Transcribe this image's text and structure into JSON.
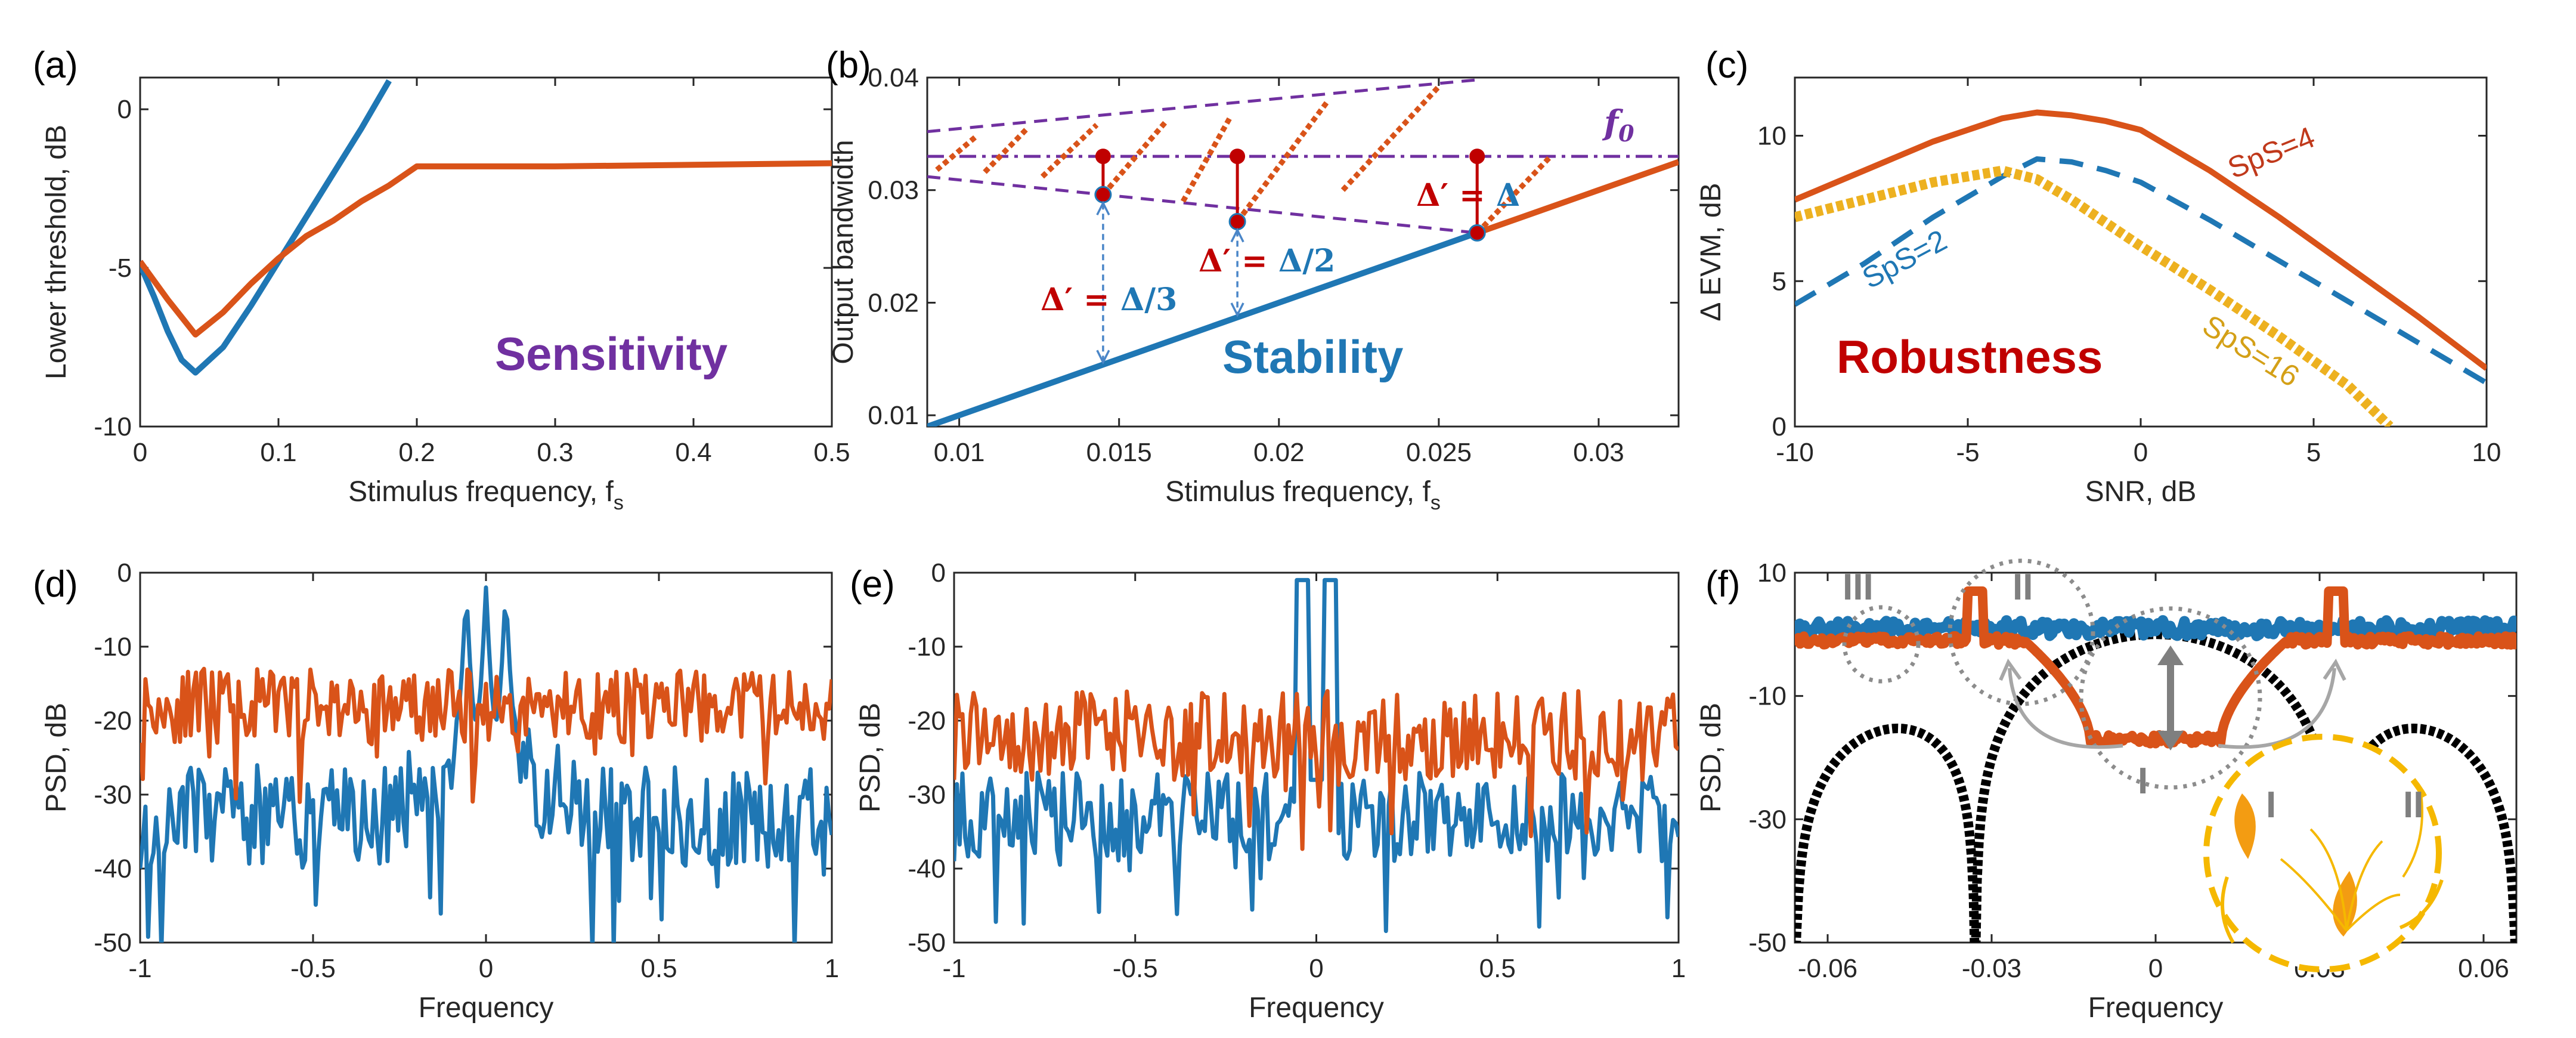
{
  "chart_data": [
    {
      "panel": "(a)",
      "type": "line",
      "xlabel": "Stimulus frequency, f",
      "xlabel_sub": "s",
      "ylabel": "Lower threshold, dB",
      "xlim": [
        0,
        0.5
      ],
      "ylim": [
        -10,
        1
      ],
      "xticks": [
        "0",
        "0.1",
        "0.2",
        "0.3",
        "0.4",
        "0.5"
      ],
      "yticks": [
        "0",
        "-5",
        "-10"
      ],
      "annotation": "Sensitivity",
      "series": [
        {
          "name": "blue",
          "color": "#1f77b4",
          "x": [
            0,
            0.01,
            0.02,
            0.03,
            0.04,
            0.06,
            0.08,
            0.1,
            0.12,
            0.14,
            0.16,
            0.18
          ],
          "y": [
            -4.9,
            -5.9,
            -7.0,
            -7.9,
            -8.3,
            -7.5,
            -6.2,
            -4.8,
            -3.4,
            -2.0,
            -0.6,
            0.9
          ]
        },
        {
          "name": "orange",
          "color": "#d95319",
          "x": [
            0,
            0.02,
            0.04,
            0.06,
            0.08,
            0.1,
            0.12,
            0.14,
            0.16,
            0.18,
            0.2,
            0.3,
            0.4,
            0.5
          ],
          "y": [
            -4.8,
            -6.0,
            -7.1,
            -6.4,
            -5.5,
            -4.7,
            -4.0,
            -3.5,
            -2.9,
            -2.4,
            -1.8,
            -1.8,
            -1.75,
            -1.7
          ]
        }
      ]
    },
    {
      "panel": "(b)",
      "type": "line",
      "xlabel": "Stimulus frequency, f",
      "xlabel_sub": "s",
      "ylabel": "Output bandwidth",
      "xlim": [
        0.009,
        0.0325
      ],
      "ylim": [
        0.009,
        0.04
      ],
      "xticks": [
        "0.01",
        "0.015",
        "0.02",
        "0.025",
        "0.03"
      ],
      "yticks": [
        "0.01",
        "0.02",
        "0.03",
        "0.04"
      ],
      "annotation": "Stability",
      "f0_label": "f",
      "f0_value": 0.033,
      "labels": {
        "d3_prefix": "Δ′ = ",
        "d3_value": "Δ/3",
        "d2_prefix": "Δ′ = ",
        "d2_value": "Δ/2",
        "d1_prefix": "Δ′ = ",
        "d1_value": "Δ"
      },
      "markers_x": [
        0.0145,
        0.0187,
        0.0262
      ],
      "series": [
        {
          "name": "stable-blue",
          "color": "#1f77b4",
          "x": [
            0.009,
            0.0262
          ],
          "y": [
            0.009,
            0.0262
          ]
        },
        {
          "name": "orange-branch",
          "color": "#d95319",
          "x": [
            0.0262,
            0.0325
          ],
          "y": [
            0.0262,
            0.0325
          ]
        }
      ]
    },
    {
      "panel": "(c)",
      "type": "line",
      "xlabel": "SNR, dB",
      "ylabel": "Δ EVM, dB",
      "xlim": [
        -10,
        10
      ],
      "ylim": [
        0,
        12
      ],
      "xticks": [
        "-10",
        "-5",
        "0",
        "5",
        "10"
      ],
      "yticks": [
        "0",
        "5",
        "10"
      ],
      "annotation": "Robustness",
      "series": [
        {
          "name": "SpS=4",
          "color": "#d95319",
          "x": [
            -10,
            -8,
            -6,
            -4,
            -3,
            -2,
            -1,
            0,
            2,
            4,
            6,
            8,
            10
          ],
          "y": [
            7.8,
            8.8,
            9.8,
            10.6,
            10.8,
            10.7,
            10.5,
            10.2,
            8.8,
            7.2,
            5.5,
            3.8,
            2.0
          ]
        },
        {
          "name": "SpS=2",
          "color": "#1f77b4",
          "x": [
            -10,
            -8,
            -6,
            -4,
            -3,
            -2,
            -1,
            0,
            2,
            4,
            6,
            8,
            10
          ],
          "y": [
            4.2,
            5.6,
            7.2,
            8.6,
            9.2,
            9.1,
            8.8,
            8.4,
            7.1,
            5.7,
            4.3,
            2.9,
            1.5
          ]
        },
        {
          "name": "SpS=16",
          "color": "#edb120",
          "x": [
            -10,
            -8,
            -6,
            -4,
            -3,
            -2,
            -1,
            0,
            2,
            4,
            6,
            7.2
          ],
          "y": [
            7.2,
            7.8,
            8.4,
            8.8,
            8.5,
            7.8,
            7.0,
            6.2,
            4.7,
            3.1,
            1.4,
            0.0
          ]
        }
      ],
      "legend_labels": [
        "SpS=4",
        "SpS=2",
        "SpS=16"
      ]
    },
    {
      "panel": "(d)",
      "type": "line",
      "xlabel": "Frequency",
      "ylabel": "PSD, dB",
      "xlim": [
        -1,
        1
      ],
      "ylim": [
        -50,
        0
      ],
      "xticks": [
        "-1",
        "-0.5",
        "0",
        "0.5",
        "1"
      ],
      "yticks": [
        "0",
        "-10",
        "-20",
        "-30",
        "-40",
        "-50"
      ],
      "series": [
        {
          "name": "blue-psd",
          "color": "#1f77b4",
          "base": -33,
          "spread": 7,
          "seed": 3
        },
        {
          "name": "orange-psd",
          "color": "#d95319",
          "base": -18,
          "spread": 5,
          "seed": 11
        }
      ]
    },
    {
      "panel": "(e)",
      "type": "line",
      "xlabel": "Frequency",
      "ylabel": "PSD, dB",
      "xlim": [
        -1,
        1
      ],
      "ylim": [
        -50,
        0
      ],
      "xticks": [
        "-1",
        "-0.5",
        "0",
        "0.5",
        "1"
      ],
      "yticks": [
        "0",
        "-10",
        "-20",
        "-30",
        "-40",
        "-50"
      ],
      "series": [
        {
          "name": "blue-psd",
          "color": "#1f77b4",
          "base": -33,
          "spread": 6,
          "seed": 21
        },
        {
          "name": "orange-psd",
          "color": "#d95319",
          "base": -22,
          "spread": 6,
          "seed": 37
        }
      ]
    },
    {
      "panel": "(f)",
      "type": "line",
      "xlabel": "Frequency",
      "ylabel": "PSD, dB",
      "xlim": [
        -0.066,
        0.066
      ],
      "ylim": [
        -50,
        10
      ],
      "xticks": [
        "-0.06",
        "-0.03",
        "0",
        "0.03",
        "0.06"
      ],
      "yticks": [
        "10",
        "-10",
        "-30",
        "-50"
      ],
      "region_labels": [
        "III",
        "II",
        "I",
        "I",
        "II"
      ],
      "series": [
        {
          "name": "blue-flat",
          "color": "#1f77b4",
          "level": 1
        },
        {
          "name": "orange-notch",
          "color": "#d95319"
        },
        {
          "name": "black-sinc",
          "color": "#000000"
        }
      ]
    }
  ]
}
